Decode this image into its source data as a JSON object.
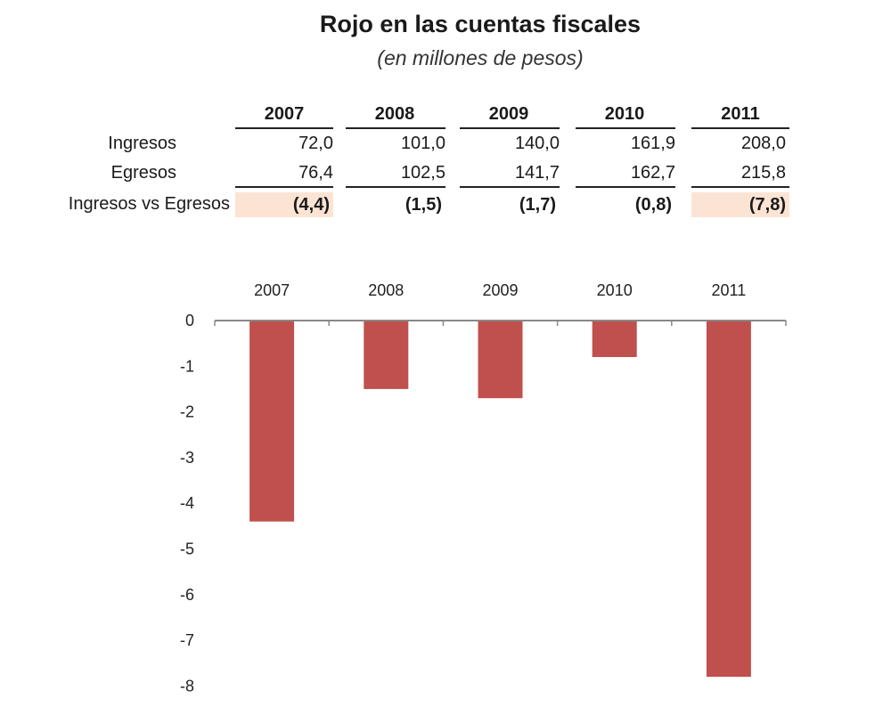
{
  "title": "Rojo en las cuentas fiscales",
  "subtitle": "(en millones de pesos)",
  "table": {
    "years": [
      "2007",
      "2008",
      "2009",
      "2010",
      "2011"
    ],
    "rows": [
      {
        "label": "Ingresos",
        "values": [
          "72,0",
          "101,0",
          "140,0",
          "161,9",
          "208,0"
        ]
      },
      {
        "label": "Egresos",
        "values": [
          "76,4",
          "102,5",
          "141,7",
          "162,7",
          "215,8"
        ]
      }
    ],
    "diff_label": "Ingresos vs Egresos",
    "diff_values": [
      "(4,4)",
      "(1,5)",
      "(1,7)",
      "(0,8)",
      "(7,8)"
    ]
  },
  "colors": {
    "bar": "#c0504d",
    "highlight": "#fce4d4"
  },
  "chart_data": {
    "type": "bar",
    "categories": [
      "2007",
      "2008",
      "2009",
      "2010",
      "2011"
    ],
    "values": [
      -4.4,
      -1.5,
      -1.7,
      -0.8,
      -7.8
    ],
    "ylim": [
      -8,
      0
    ],
    "yticks": [
      "0",
      "-1",
      "-2",
      "-3",
      "-4",
      "-5",
      "-6",
      "-7",
      "-8"
    ],
    "category_axis_position": "top",
    "grid": false
  }
}
